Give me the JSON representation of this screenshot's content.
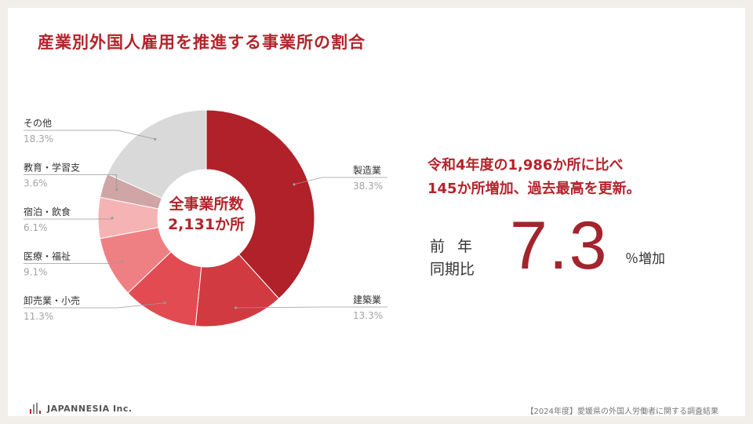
{
  "title": "産業別外国人雇用を推進する事業所の割合",
  "chart_data": {
    "type": "pie",
    "donut": true,
    "title": "産業別外国人雇用を推進する事業所の割合",
    "center_label": [
      "全事業所数",
      "2,131か所"
    ],
    "slices": [
      {
        "name": "製造業",
        "value": 38.3,
        "label": "38.3%",
        "color": "#b0212a",
        "side": "right"
      },
      {
        "name": "建築業",
        "value": 13.3,
        "label": "13.3%",
        "color": "#d13a41",
        "side": "right"
      },
      {
        "name": "卸売業・小売",
        "value": 11.3,
        "label": "11.3%",
        "color": "#e24b51",
        "side": "left"
      },
      {
        "name": "医療・福祉",
        "value": 9.1,
        "label": "9.1%",
        "color": "#ee8083",
        "side": "left"
      },
      {
        "name": "宿泊・飲食",
        "value": 6.1,
        "label": "6.1%",
        "color": "#f6b3b4",
        "side": "left"
      },
      {
        "name": "教育・学習支",
        "value": 3.6,
        "label": "3.6%",
        "color": "#cfa5a6",
        "side": "left"
      },
      {
        "name": "その他",
        "value": 18.3,
        "label": "18.3%",
        "color": "#d9d9d9",
        "side": "left"
      }
    ]
  },
  "summary": {
    "line1": "令和4年度の1,986か所に比べ",
    "line2": "145か所増加、過去最高を更新。",
    "yoy_label_1": "前年",
    "yoy_label_2": "同期比",
    "yoy_value": "7.3",
    "yoy_unit": "％増加"
  },
  "footer": {
    "logo": "JAPANNESIA Inc.",
    "note": "【2024年度】愛媛県の外国人労働者に関する調査結果"
  },
  "colors": {
    "accent": "#b3242c",
    "logo_bars": [
      "#b3242c",
      "#888888",
      "#888888",
      "#b3242c"
    ]
  }
}
